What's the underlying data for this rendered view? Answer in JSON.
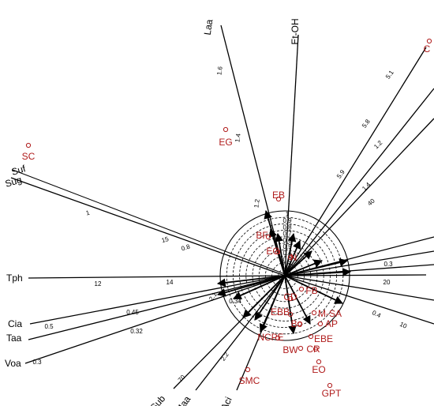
{
  "chart_data": {
    "type": "scatter",
    "variables": [
      {
        "name": "Et-OH",
        "ticks": []
      },
      {
        "name": "Laa",
        "ticks": [
          "1.6",
          "1.4",
          "1.2"
        ]
      },
      {
        "name": "Suf",
        "ticks": []
      },
      {
        "name": "Sug",
        "ticks": [
          "1",
          "15",
          "0.8"
        ]
      },
      {
        "name": "Tph",
        "ticks": [
          "12",
          "14"
        ]
      },
      {
        "name": "Cia",
        "ticks": [
          "0.5",
          "0.45"
        ]
      },
      {
        "name": "Taa",
        "ticks": []
      },
      {
        "name": "Voa",
        "ticks": [
          "0.3",
          "0.32",
          "0.34"
        ]
      },
      {
        "name": "Sub",
        "ticks": [
          "70"
        ]
      },
      {
        "name": "Maa",
        "ticks": [
          "2.2",
          "2.1"
        ]
      },
      {
        "name": "Aci",
        "ticks": []
      }
    ],
    "extra_ticks": [
      "5.1",
      "5.8",
      "5.9",
      "1.2",
      "1.4",
      "40",
      "0.3",
      "20",
      "0.4",
      "10"
    ],
    "circle_ticks": [
      "1",
      "0.9",
      "0.8",
      "0.7",
      "0.6",
      "0.5",
      "0.4",
      "0.3",
      "0.2",
      "0.1"
    ],
    "points": [
      {
        "label": "SC"
      },
      {
        "label": "C"
      },
      {
        "label": "EG"
      },
      {
        "label": "EB"
      },
      {
        "label": "BF"
      },
      {
        "label": "EG"
      },
      {
        "label": "N"
      },
      {
        "label": "FB"
      },
      {
        "label": "CD"
      },
      {
        "label": "EBB"
      },
      {
        "label": "M-SA"
      },
      {
        "label": "AP"
      },
      {
        "label": "Bo"
      },
      {
        "label": "NCPE"
      },
      {
        "label": "EBE"
      },
      {
        "label": "BW"
      },
      {
        "label": "CR"
      },
      {
        "label": "EO"
      },
      {
        "label": "SMC"
      },
      {
        "label": "GPT"
      }
    ]
  },
  "colors": {
    "axis": "#000000",
    "points": "#b01c1c"
  }
}
